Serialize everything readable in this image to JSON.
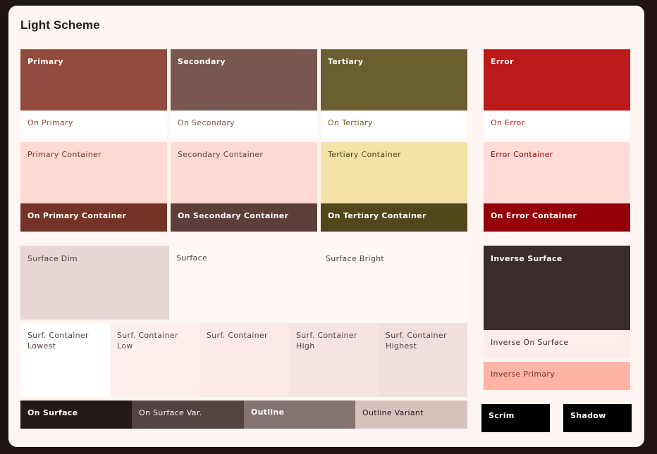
{
  "header": {
    "title": "Light Scheme"
  },
  "key_colors": {
    "primary": {
      "label": "Primary",
      "color": "#904b3c"
    },
    "on_primary": {
      "label": "On Primary"
    },
    "secondary": {
      "label": "Secondary",
      "color": "#775750"
    },
    "on_secondary": {
      "label": "On Secondary"
    },
    "tertiary": {
      "label": "Tertiary",
      "color": "#6b5e2f"
    },
    "on_tertiary": {
      "label": "On Tertiary"
    },
    "error": {
      "label": "Error",
      "color": "#ba1a1a"
    },
    "on_error": {
      "label": "On Error"
    }
  },
  "containers": {
    "primary_container": {
      "label": "Primary Container",
      "color": "#ffdad2"
    },
    "on_primary_container": {
      "label": "On Primary Container",
      "color": "#733427"
    },
    "secondary_container": {
      "label": "Secondary Container",
      "color": "#ffdad2"
    },
    "on_secondary_container": {
      "label": "On Secondary Container",
      "color": "#5d3f3a"
    },
    "tertiary_container": {
      "label": "Tertiary Container",
      "color": "#f4e2a7"
    },
    "on_tertiary_container": {
      "label": "On Tertiary Container",
      "color": "#52461a"
    },
    "error_container": {
      "label": "Error Container",
      "color": "#ffdad6"
    },
    "on_error_container": {
      "label": "On Error Container",
      "color": "#93000a"
    }
  },
  "surfaces": {
    "surface_dim": {
      "label": "Surface Dim",
      "color": "#e8d6d2"
    },
    "surface": {
      "label": "Surface",
      "color": "#fff8f6"
    },
    "surface_bright": {
      "label": "Surface Bright",
      "color": "#fff8f6"
    },
    "container_lowest": {
      "label": "Surf. Container\nLowest",
      "color": "#ffffff"
    },
    "container_low": {
      "label": "Surf. Container\nLow",
      "color": "#fff0ee"
    },
    "container": {
      "label": "Surf. Container",
      "color": "#fceae6"
    },
    "container_high": {
      "label": "Surf. Container\nHigh",
      "color": "#f6e4e0"
    },
    "container_highest": {
      "label": "Surf. Container\nHighest",
      "color": "#f1dfdb"
    }
  },
  "on_surface_row": {
    "on_surface": {
      "label": "On Surface",
      "color": "#231918"
    },
    "on_surface_var": {
      "label": "On Surface Var.",
      "color": "#534341"
    },
    "outline": {
      "label": "Outline",
      "color": "#857370"
    },
    "outline_variant": {
      "label": "Outline Variant",
      "color": "#d8c2bd"
    }
  },
  "inverse": {
    "inverse_surface": {
      "label": "Inverse Surface",
      "color": "#392e2c"
    },
    "inverse_on_surface": {
      "label": "Inverse On Surface",
      "color": "#ffedea"
    },
    "inverse_primary": {
      "label": "Inverse Primary",
      "color": "#ffb4a4"
    }
  },
  "misc": {
    "scrim": {
      "label": "Scrim",
      "color": "#000000"
    },
    "shadow": {
      "label": "Shadow",
      "color": "#000000"
    }
  }
}
